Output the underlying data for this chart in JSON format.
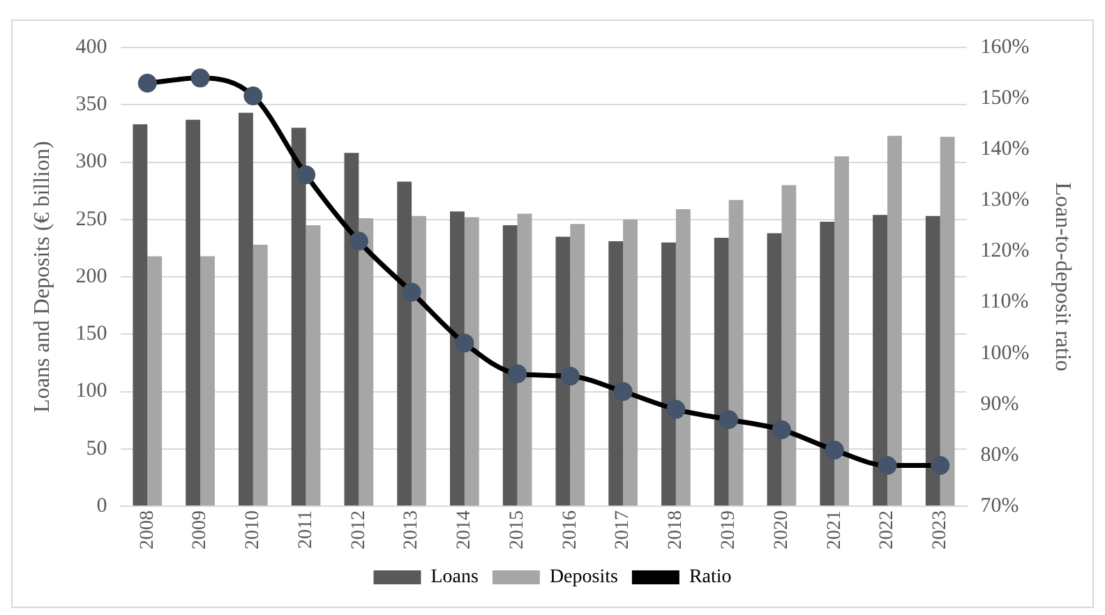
{
  "chart_data": {
    "type": "bar",
    "ylabel": "Loans and Deposits (€ billion)",
    "y2label": "Loan-to-deposit ratio",
    "categories": [
      "2008",
      "2009",
      "2010",
      "2011",
      "2012",
      "2013",
      "2014",
      "2015",
      "2016",
      "2017",
      "2018",
      "2019",
      "2020",
      "2021",
      "2022",
      "2023"
    ],
    "series": [
      {
        "name": "Loans",
        "color": "#595959",
        "values": [
          333,
          337,
          343,
          330,
          308,
          283,
          257,
          245,
          235,
          231,
          230,
          234,
          238,
          248,
          254,
          253
        ]
      },
      {
        "name": "Deposits",
        "color": "#a6a6a6",
        "values": [
          218,
          218,
          228,
          245,
          251,
          253,
          252,
          255,
          246,
          250,
          259,
          267,
          280,
          305,
          323,
          322
        ]
      },
      {
        "name": "Ratio",
        "type": "line",
        "axis": "y2",
        "color": "#000000",
        "marker": "circle",
        "values": [
          153,
          154,
          150.5,
          135,
          122,
          112,
          102,
          96,
          95.5,
          92.5,
          89,
          87,
          85,
          81,
          78,
          78
        ]
      }
    ],
    "ylim": [
      0,
      400
    ],
    "yticks": [
      0,
      50,
      100,
      150,
      200,
      250,
      300,
      350,
      400
    ],
    "y2lim": [
      70,
      160
    ],
    "y2ticks": [
      {
        "value": 70,
        "label": "70%"
      },
      {
        "value": 80,
        "label": "80%"
      },
      {
        "value": 90,
        "label": "90%"
      },
      {
        "value": 100,
        "label": "100%"
      },
      {
        "value": 110,
        "label": "110%"
      },
      {
        "value": 120,
        "label": "120%"
      },
      {
        "value": 130,
        "label": "130%"
      },
      {
        "value": 140,
        "label": "140%"
      },
      {
        "value": 150,
        "label": "150%"
      },
      {
        "value": 160,
        "label": "160%"
      }
    ],
    "grid": "y",
    "legend": "bottom"
  }
}
